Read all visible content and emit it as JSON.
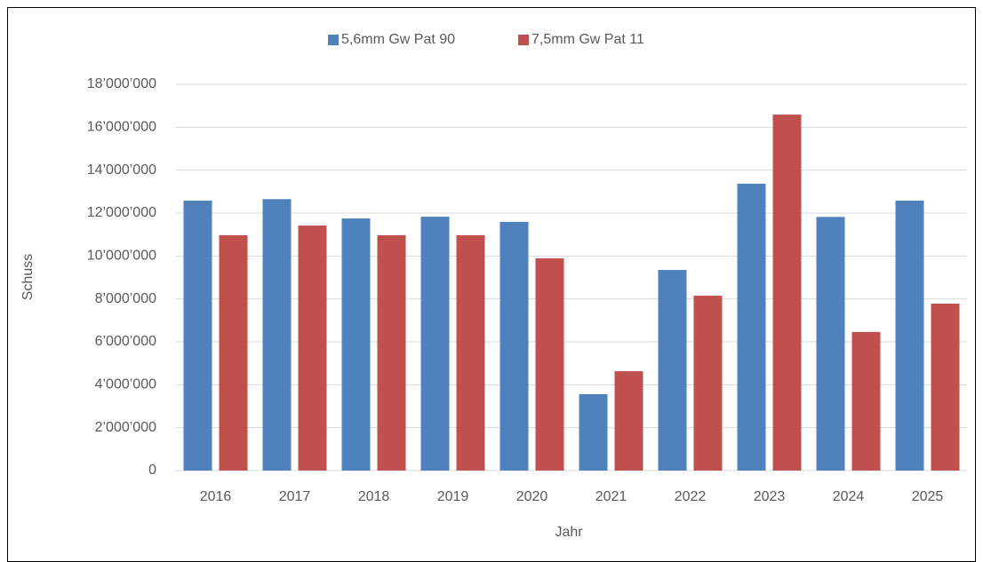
{
  "chart_data": {
    "type": "bar",
    "x_label": "Jahr",
    "y_label": "Schuss",
    "categories": [
      "2016",
      "2017",
      "2018",
      "2019",
      "2020",
      "2021",
      "2022",
      "2023",
      "2024",
      "2025"
    ],
    "series": [
      {
        "name": "5,6mm Gw Pat 90",
        "color": "#4f81bd",
        "values": [
          12580000,
          12650000,
          11750000,
          11830000,
          11590000,
          3560000,
          9350000,
          13370000,
          11820000,
          12580000
        ]
      },
      {
        "name": "7,5mm Gw Pat 11",
        "color": "#c0504d",
        "values": [
          10970000,
          11420000,
          10970000,
          10970000,
          9890000,
          4630000,
          8150000,
          16590000,
          6460000,
          7780000
        ]
      }
    ],
    "ylim": [
      0,
      18000000
    ],
    "yticks": [
      0,
      {
        "value": 2000000,
        "label": "2’000’000"
      },
      {
        "value": 4000000,
        "label": "4’000’000"
      },
      {
        "value": 6000000,
        "label": "6’000’000"
      },
      {
        "value": 8000000,
        "label": "8’000’000"
      },
      {
        "value": 10000000,
        "label": "10’000’000"
      },
      {
        "value": 12000000,
        "label": "12’000’000"
      },
      {
        "value": 14000000,
        "label": "14’000’000"
      },
      {
        "value": 16000000,
        "label": "16’000’000"
      },
      {
        "value": 18000000,
        "label": "18’000’000"
      }
    ],
    "grid": true,
    "legend": "top"
  }
}
